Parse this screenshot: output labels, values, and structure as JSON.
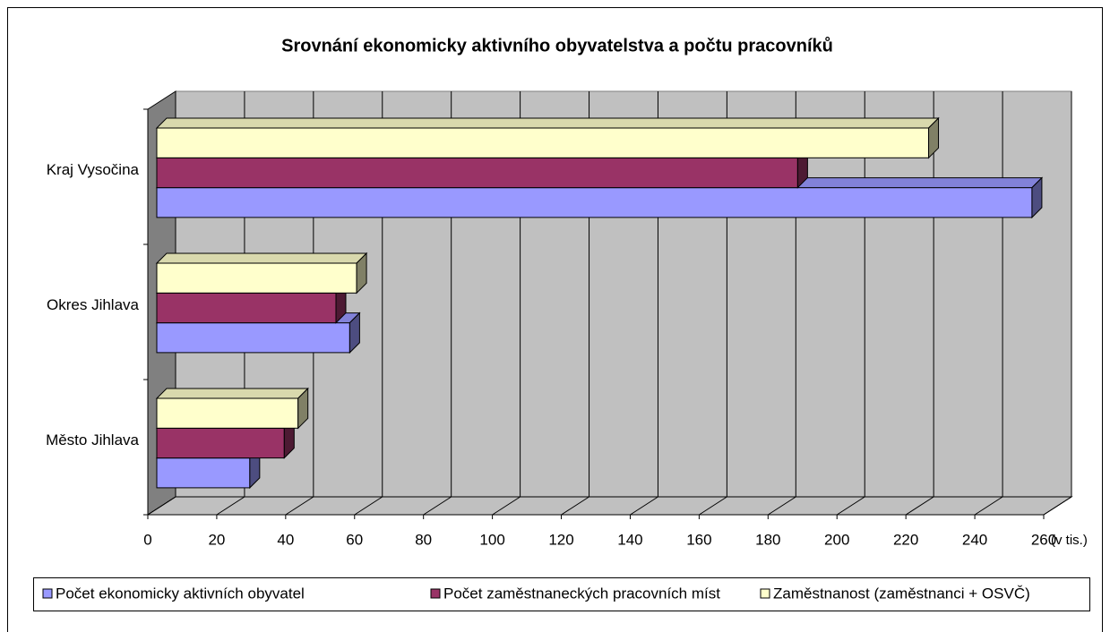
{
  "chart_data": {
    "type": "bar3d_horizontal",
    "title": "Srovnání ekonomicky aktivního obyvatelstva a počtu pracovníků",
    "categories": [
      "Město Jihlava",
      "Okres Jihlava",
      "Kraj Vysočina"
    ],
    "series": [
      {
        "name": "Počet ekonomicky aktivních obyvatel",
        "color": "#9999ff",
        "values": [
          27,
          56,
          254
        ]
      },
      {
        "name": "Počet zaměstnaneckých pracovních míst",
        "color": "#993366",
        "values": [
          37,
          52,
          186
        ]
      },
      {
        "name": "Zaměstnanost (zaměstnanci + OSVČ)",
        "color": "#ffffcc",
        "values": [
          41,
          58,
          224
        ]
      }
    ],
    "x_label": "(v tis.)",
    "xlim": [
      0,
      260
    ],
    "xticks": [
      0,
      20,
      40,
      60,
      80,
      100,
      120,
      140,
      160,
      180,
      200,
      220,
      240,
      260
    ],
    "grid": true,
    "legend": "bottom"
  }
}
